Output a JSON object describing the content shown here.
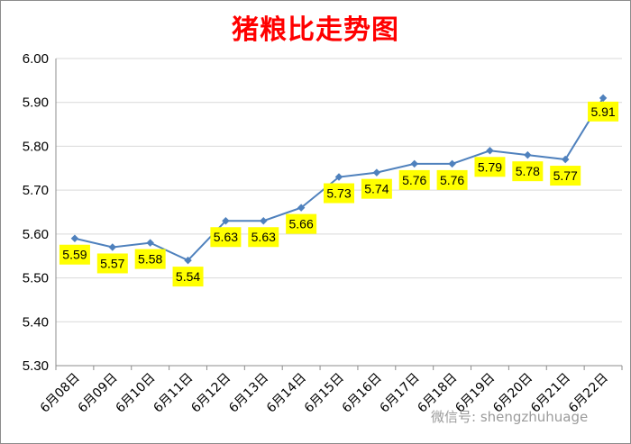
{
  "chart_data": {
    "type": "line",
    "title": "猪粮比走势图",
    "categories": [
      "6月08日",
      "6月09日",
      "6月10日",
      "6月11日",
      "6月12日",
      "6月13日",
      "6月14日",
      "6月15日",
      "6月16日",
      "6月17日",
      "6月18日",
      "6月19日",
      "6月20日",
      "6月21日",
      "6月22日"
    ],
    "series": [
      {
        "values": [
          5.59,
          5.57,
          5.58,
          5.54,
          5.63,
          5.63,
          5.66,
          5.73,
          5.74,
          5.76,
          5.76,
          5.79,
          5.78,
          5.77,
          5.91
        ]
      }
    ],
    "ylim": [
      5.3,
      6.0
    ],
    "yticks": [
      "5.30",
      "5.40",
      "5.50",
      "5.60",
      "5.70",
      "5.80",
      "5.90",
      "6.00"
    ],
    "grid": true,
    "legend": "none",
    "colors": {
      "title": "#ff0000",
      "line": "#4f81bd",
      "label_bg": "#ffff00",
      "grid": "#d9d9d9"
    }
  },
  "watermark": "微信号: shengzhuhuage"
}
